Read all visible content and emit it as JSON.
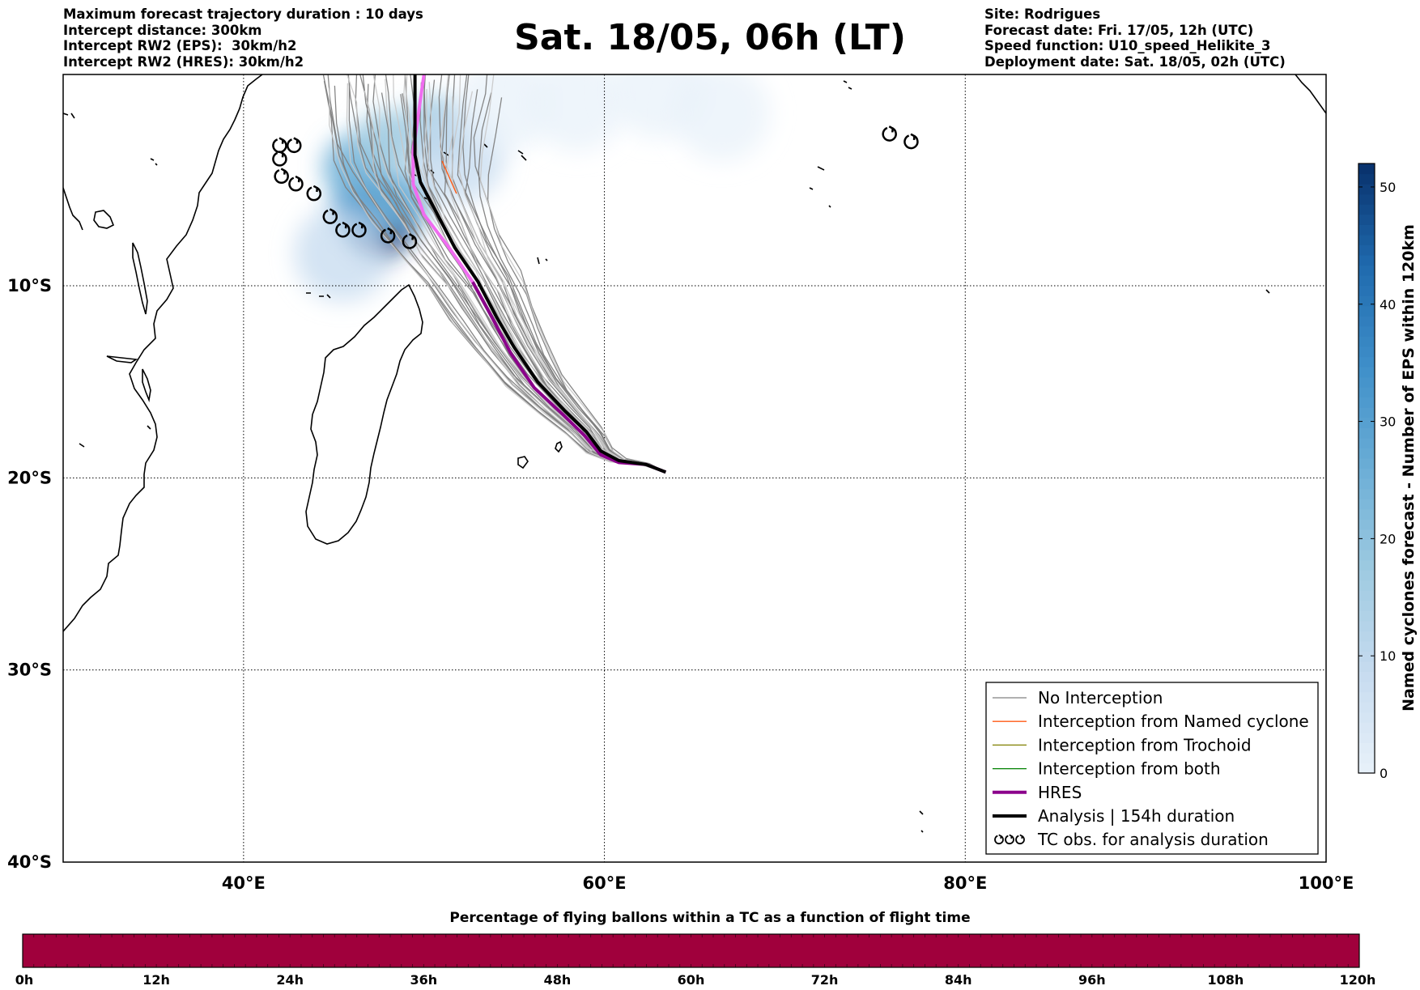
{
  "title": "Sat. 18/05, 06h (LT)",
  "header_left": [
    "Maximum forecast trajectory duration : 10 days",
    "Intercept distance: 300km",
    "Intercept RW2 (EPS):  30km/h2",
    "Intercept RW2 (HRES): 30km/h2"
  ],
  "header_right": [
    "Site: Rodrigues",
    "Forecast date: Fri. 17/05, 12h (UTC)",
    "Speed function: U10_speed_Helikite_3",
    "Deployment date: Sat. 18/05, 02h (UTC)"
  ],
  "map": {
    "lon_range": [
      30,
      100
    ],
    "lat_range": [
      -40,
      1
    ],
    "lon_ticks": [
      {
        "value": 40,
        "label": "40°E"
      },
      {
        "value": 60,
        "label": "60°E"
      },
      {
        "value": 80,
        "label": "80°E"
      },
      {
        "value": 100,
        "label": "100°E"
      }
    ],
    "lat_ticks": [
      {
        "value": -10,
        "label": "10°S"
      },
      {
        "value": -20,
        "label": "20°S"
      },
      {
        "value": -30,
        "label": "30°S"
      },
      {
        "value": -40,
        "label": "40°S"
      }
    ],
    "grid": true,
    "launch_site": {
      "lon": 63.4,
      "lat": -19.7
    },
    "analysis_track": [
      [
        63.4,
        -19.7
      ],
      [
        62.3,
        -19.3
      ],
      [
        60.8,
        -19.1
      ],
      [
        59.8,
        -18.6
      ],
      [
        59.0,
        -17.6
      ],
      [
        57.8,
        -16.5
      ],
      [
        56.3,
        -15.0
      ],
      [
        55.0,
        -13.2
      ],
      [
        54.0,
        -11.6
      ],
      [
        53.0,
        -9.8
      ],
      [
        51.7,
        -8.0
      ],
      [
        50.7,
        -6.2
      ],
      [
        49.8,
        -4.6
      ],
      [
        49.5,
        -3.2
      ],
      [
        49.5,
        -1.0
      ],
      [
        49.5,
        1.0
      ]
    ],
    "hres_track": [
      [
        63.4,
        -19.7
      ],
      [
        62.3,
        -19.3
      ],
      [
        60.8,
        -19.2
      ],
      [
        59.8,
        -18.8
      ],
      [
        58.9,
        -17.8
      ],
      [
        57.7,
        -16.7
      ],
      [
        56.1,
        -15.3
      ],
      [
        54.8,
        -13.5
      ],
      [
        53.8,
        -11.7
      ],
      [
        52.7,
        -9.8
      ],
      [
        51.3,
        -7.9
      ],
      [
        50.0,
        -6.3
      ],
      [
        49.4,
        -4.7
      ],
      [
        49.4,
        -3.0
      ],
      [
        49.7,
        -1.0
      ],
      [
        50.0,
        1.0
      ]
    ],
    "tc_obs": [
      [
        42.0,
        -2.7
      ],
      [
        42.8,
        -2.7
      ],
      [
        42.0,
        -3.4
      ],
      [
        42.1,
        -4.3
      ],
      [
        42.9,
        -4.7
      ],
      [
        43.9,
        -5.2
      ],
      [
        44.8,
        -6.4
      ],
      [
        45.5,
        -7.1
      ],
      [
        46.4,
        -7.1
      ],
      [
        48.0,
        -7.4
      ],
      [
        49.2,
        -7.7
      ],
      [
        75.8,
        -2.1
      ],
      [
        77.0,
        -2.5
      ]
    ],
    "density_blobs": [
      {
        "lon": 47.6,
        "lat": -6.8,
        "level": 48
      },
      {
        "lon": 46.8,
        "lat": -5.8,
        "level": 36
      },
      {
        "lon": 48.6,
        "lat": -5.5,
        "level": 30
      },
      {
        "lon": 46.2,
        "lat": -3.8,
        "level": 22
      },
      {
        "lon": 48.0,
        "lat": -2.5,
        "level": 18
      },
      {
        "lon": 50.6,
        "lat": -1.8,
        "level": 14
      },
      {
        "lon": 51.8,
        "lat": -3.2,
        "level": 8
      },
      {
        "lon": 54.5,
        "lat": -0.5,
        "level": 3
      },
      {
        "lon": 58.5,
        "lat": -0.5,
        "level": 2
      },
      {
        "lon": 63.0,
        "lat": 0.2,
        "level": 2
      },
      {
        "lon": 66.5,
        "lat": -1.0,
        "level": 1
      },
      {
        "lon": 45.5,
        "lat": -8.3,
        "level": 5
      }
    ]
  },
  "legend": {
    "items": [
      {
        "label": "No Interception",
        "color": "#808080",
        "width": 1.3
      },
      {
        "label": "Interception from Named cyclone",
        "color": "#ff5a14",
        "width": 1.3
      },
      {
        "label": "Interception from Trochoid",
        "color": "#808000",
        "width": 1.3
      },
      {
        "label": "Interception from both",
        "color": "#008000",
        "width": 1.3
      },
      {
        "label": "HRES",
        "color": "#8b008b",
        "width": 4
      },
      {
        "label": "Analysis | 154h duration",
        "color": "#000000",
        "width": 4
      },
      {
        "label": "TC obs. for analysis duration",
        "color": "#000000",
        "width": 0,
        "icon": "tc-obs-icon"
      }
    ]
  },
  "colorbar": {
    "title": "Named cyclones forecast - Number of EPS within 120km",
    "min": 0,
    "max": 52,
    "ticks": [
      0,
      10,
      20,
      30,
      40,
      50
    ],
    "colors": [
      "#e8f1fa",
      "#c6dbef",
      "#9ecae1",
      "#6baed6",
      "#3f8fc9",
      "#1f6aae",
      "#08306b"
    ]
  },
  "flight_time_bar": {
    "title": "Percentage of flying ballons within a TC as a function of flight time",
    "color": "#a0003c",
    "tick_labels": [
      "0h",
      "12h",
      "24h",
      "36h",
      "48h",
      "60h",
      "72h",
      "84h",
      "96h",
      "108h",
      "120h"
    ]
  }
}
